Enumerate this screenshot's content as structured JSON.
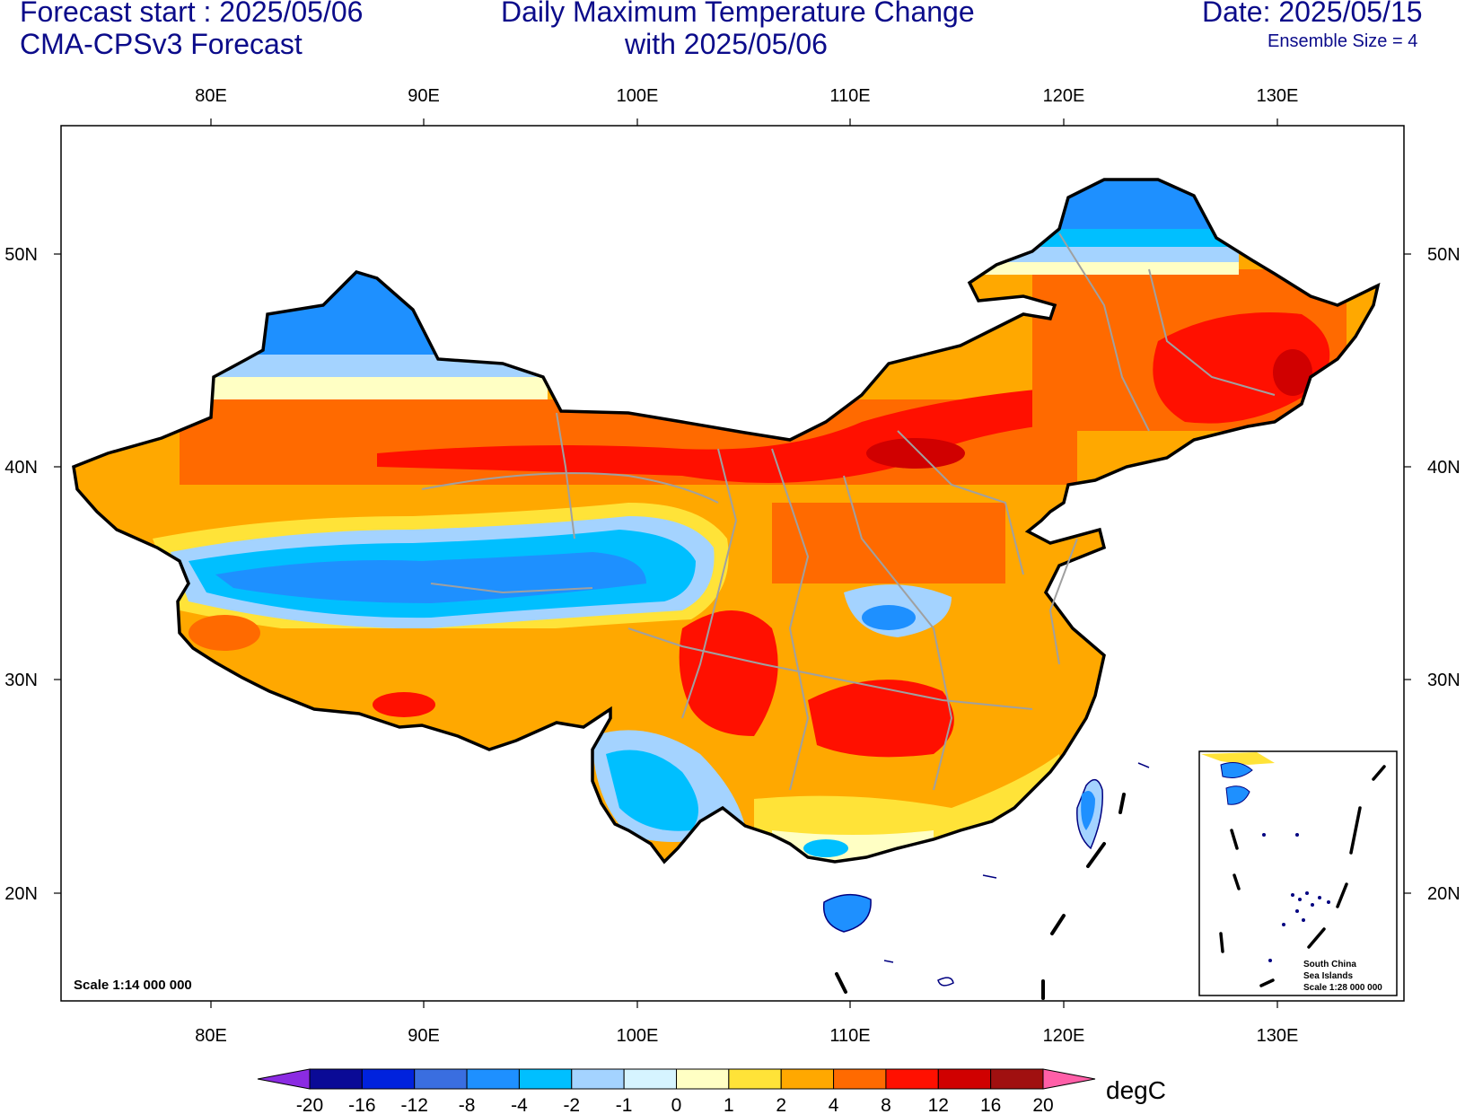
{
  "header": {
    "forecast_start": "Forecast start : 2025/05/06",
    "model": "CMA-CPSv3 Forecast",
    "title_line1": "Daily Maximum Temperature Change",
    "title_line2": "with 2025/05/06",
    "date": "Date: 2025/05/15",
    "ensemble": "Ensemble Size = 4"
  },
  "map": {
    "lon_labels": [
      "80E",
      "90E",
      "100E",
      "110E",
      "120E",
      "130E"
    ],
    "lat_labels": [
      "50N",
      "40N",
      "30N",
      "20N"
    ],
    "scale_main": "Scale 1:14 000 000",
    "inset_lines": [
      "South China",
      "Sea Islands",
      "Scale 1:28 000 000"
    ]
  },
  "colorbar": {
    "unit": "degC",
    "labels": [
      "-20",
      "-16",
      "-12",
      "-8",
      "-4",
      "-2",
      "-1",
      "0",
      "1",
      "2",
      "4",
      "8",
      "12",
      "16",
      "20"
    ],
    "colors": [
      "#0a0a96",
      "#0022dd",
      "#3a6ee0",
      "#1e90ff",
      "#00bfff",
      "#a4d3ff",
      "#d6f4ff",
      "#ffffc4",
      "#ffe338",
      "#ffa800",
      "#ff6a00",
      "#ff1000",
      "#d00000",
      "#a01010"
    ],
    "low_arrow_color": "#8b2be2",
    "high_arrow_color": "#ff5fa8"
  }
}
